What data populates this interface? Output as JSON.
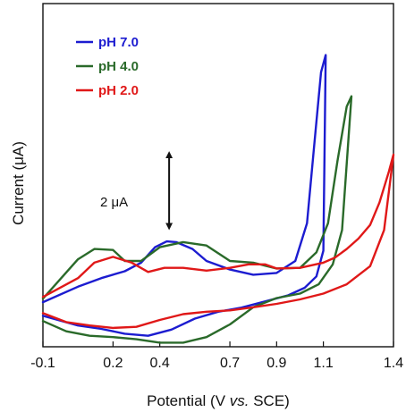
{
  "chart_data": {
    "type": "line",
    "xlabel_parts": [
      "Potential (V ",
      "vs.",
      " SCE)"
    ],
    "ylabel": "Current (μA)",
    "xlim": [
      -0.1,
      1.4
    ],
    "ylim": [
      0,
      10
    ],
    "xticks": [
      -0.1,
      0.2,
      0.4,
      0.7,
      0.9,
      1.1,
      1.4
    ],
    "xtick_labels": [
      "-0.1",
      "0.2",
      "0.4",
      "0.7",
      "0.9",
      "1.1",
      "1.4"
    ],
    "grid": false,
    "legend_position": "top-left",
    "annotation": {
      "text": "2 μA",
      "arrow_x": 0.44,
      "arrow_y": [
        3.4,
        5.7
      ],
      "units_per_uA": 1.15
    },
    "series": [
      {
        "name": "pH 7.0",
        "color": "#1c1cd0",
        "points": [
          [
            -0.1,
            0.9
          ],
          [
            0.05,
            0.62
          ],
          [
            0.15,
            0.52
          ],
          [
            0.25,
            0.38
          ],
          [
            0.35,
            0.32
          ],
          [
            0.45,
            0.5
          ],
          [
            0.55,
            0.82
          ],
          [
            0.65,
            1.02
          ],
          [
            0.75,
            1.14
          ],
          [
            0.85,
            1.32
          ],
          [
            0.95,
            1.5
          ],
          [
            1.02,
            1.72
          ],
          [
            1.07,
            2.05
          ],
          [
            1.1,
            2.8
          ],
          [
            1.11,
            8.5
          ],
          [
            1.09,
            8.0
          ],
          [
            1.06,
            5.8
          ],
          [
            1.03,
            3.6
          ],
          [
            0.98,
            2.5
          ],
          [
            0.9,
            2.15
          ],
          [
            0.8,
            2.1
          ],
          [
            0.7,
            2.25
          ],
          [
            0.6,
            2.5
          ],
          [
            0.54,
            2.85
          ],
          [
            0.47,
            3.05
          ],
          [
            0.43,
            3.07
          ],
          [
            0.38,
            2.9
          ],
          [
            0.32,
            2.45
          ],
          [
            0.25,
            2.2
          ],
          [
            0.15,
            2.0
          ],
          [
            0.05,
            1.75
          ],
          [
            -0.1,
            1.3
          ]
        ]
      },
      {
        "name": "pH 4.0",
        "color": "#2a6a2a",
        "points": [
          [
            -0.1,
            0.75
          ],
          [
            0.0,
            0.45
          ],
          [
            0.1,
            0.32
          ],
          [
            0.2,
            0.28
          ],
          [
            0.3,
            0.22
          ],
          [
            0.4,
            0.12
          ],
          [
            0.5,
            0.12
          ],
          [
            0.6,
            0.28
          ],
          [
            0.7,
            0.65
          ],
          [
            0.8,
            1.15
          ],
          [
            0.9,
            1.42
          ],
          [
            1.0,
            1.55
          ],
          [
            1.08,
            1.82
          ],
          [
            1.14,
            2.4
          ],
          [
            1.18,
            3.4
          ],
          [
            1.22,
            7.3
          ],
          [
            1.2,
            7.0
          ],
          [
            1.16,
            5.4
          ],
          [
            1.12,
            3.6
          ],
          [
            1.07,
            2.75
          ],
          [
            1.0,
            2.3
          ],
          [
            0.9,
            2.28
          ],
          [
            0.8,
            2.45
          ],
          [
            0.7,
            2.5
          ],
          [
            0.6,
            2.95
          ],
          [
            0.5,
            3.05
          ],
          [
            0.4,
            2.9
          ],
          [
            0.32,
            2.5
          ],
          [
            0.25,
            2.5
          ],
          [
            0.2,
            2.82
          ],
          [
            0.12,
            2.85
          ],
          [
            0.05,
            2.55
          ],
          [
            -0.1,
            1.4
          ]
        ]
      },
      {
        "name": "pH 2.0",
        "color": "#e01818",
        "points": [
          [
            -0.1,
            0.98
          ],
          [
            0.0,
            0.72
          ],
          [
            0.1,
            0.62
          ],
          [
            0.2,
            0.55
          ],
          [
            0.3,
            0.58
          ],
          [
            0.4,
            0.78
          ],
          [
            0.5,
            0.95
          ],
          [
            0.6,
            1.02
          ],
          [
            0.7,
            1.06
          ],
          [
            0.8,
            1.15
          ],
          [
            0.9,
            1.25
          ],
          [
            1.0,
            1.38
          ],
          [
            1.1,
            1.55
          ],
          [
            1.2,
            1.82
          ],
          [
            1.3,
            2.35
          ],
          [
            1.36,
            3.4
          ],
          [
            1.4,
            5.6
          ],
          [
            1.38,
            5.1
          ],
          [
            1.34,
            4.2
          ],
          [
            1.3,
            3.55
          ],
          [
            1.25,
            3.15
          ],
          [
            1.2,
            2.85
          ],
          [
            1.15,
            2.6
          ],
          [
            1.1,
            2.45
          ],
          [
            1.0,
            2.3
          ],
          [
            0.9,
            2.28
          ],
          [
            0.85,
            2.4
          ],
          [
            0.78,
            2.4
          ],
          [
            0.7,
            2.3
          ],
          [
            0.6,
            2.22
          ],
          [
            0.5,
            2.3
          ],
          [
            0.42,
            2.3
          ],
          [
            0.35,
            2.18
          ],
          [
            0.28,
            2.45
          ],
          [
            0.2,
            2.62
          ],
          [
            0.12,
            2.45
          ],
          [
            0.05,
            2.0
          ],
          [
            -0.1,
            1.45
          ]
        ]
      }
    ]
  }
}
